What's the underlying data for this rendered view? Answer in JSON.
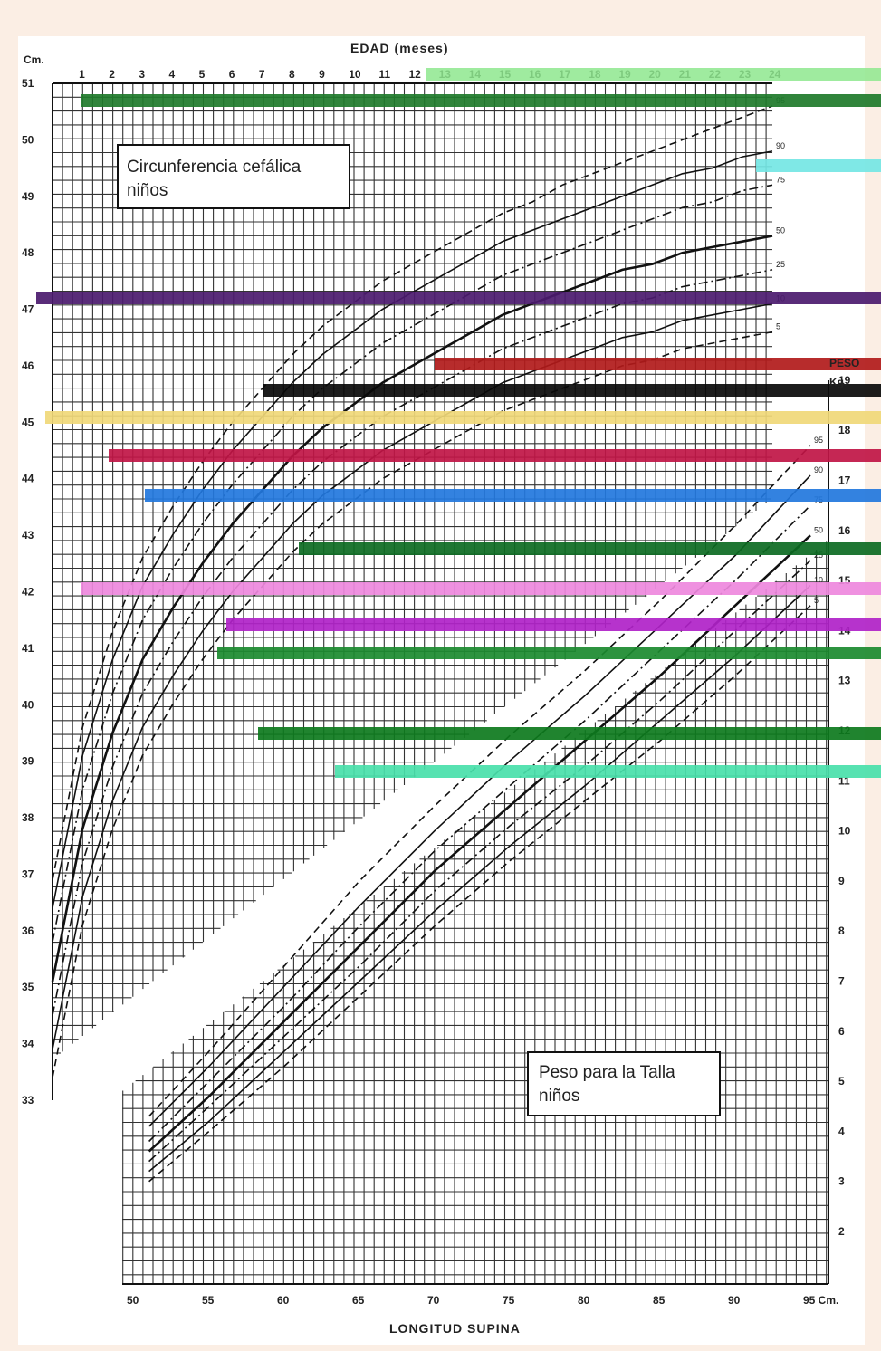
{
  "chart_data": [
    {
      "type": "line",
      "title": "Circunferencia cefálica niños",
      "xlabel": "EDAD (meses)",
      "ylabel": "Cm.",
      "x_ticks": [
        "1",
        "2",
        "3",
        "4",
        "5",
        "6",
        "7",
        "8",
        "9",
        "10",
        "11",
        "12",
        "13",
        "14",
        "15",
        "16",
        "17",
        "18",
        "19",
        "20",
        "21",
        "22",
        "23",
        "24"
      ],
      "y_ticks": [
        "51",
        "50",
        "49",
        "48",
        "47",
        "46",
        "45",
        "44",
        "43",
        "42",
        "41",
        "40",
        "39",
        "38",
        "37",
        "36",
        "35",
        "34",
        "33"
      ],
      "xlim": [
        0,
        24
      ],
      "ylim": [
        33,
        51
      ],
      "grid": true,
      "x": [
        0,
        1,
        2,
        3,
        4,
        5,
        6,
        7,
        8,
        9,
        10,
        11,
        12,
        13,
        14,
        15,
        16,
        17,
        18,
        19,
        20,
        21,
        22,
        23,
        24
      ],
      "series": [
        {
          "name": "95",
          "dash": "8,5",
          "values": [
            36.9,
            39.6,
            41.3,
            42.6,
            43.5,
            44.3,
            45.0,
            45.6,
            46.2,
            46.7,
            47.1,
            47.5,
            47.8,
            48.1,
            48.4,
            48.7,
            48.9,
            49.2,
            49.4,
            49.6,
            49.8,
            50.0,
            50.2,
            50.4,
            50.6
          ]
        },
        {
          "name": "90",
          "dash": "",
          "values": [
            36.4,
            39.1,
            40.8,
            42.1,
            43.0,
            43.8,
            44.5,
            45.1,
            45.7,
            46.2,
            46.6,
            47.0,
            47.3,
            47.6,
            47.9,
            48.2,
            48.4,
            48.6,
            48.8,
            49.0,
            49.2,
            49.4,
            49.5,
            49.7,
            49.8
          ]
        },
        {
          "name": "75",
          "dash": "10,4,2,4",
          "values": [
            35.8,
            38.5,
            40.2,
            41.5,
            42.4,
            43.2,
            43.9,
            44.5,
            45.1,
            45.6,
            46.0,
            46.4,
            46.7,
            47.0,
            47.3,
            47.6,
            47.8,
            48.0,
            48.2,
            48.4,
            48.6,
            48.8,
            48.9,
            49.1,
            49.2
          ]
        },
        {
          "name": "50",
          "dash": "",
          "values": [
            35.1,
            37.8,
            39.5,
            40.8,
            41.7,
            42.5,
            43.2,
            43.8,
            44.4,
            44.9,
            45.3,
            45.7,
            46.0,
            46.3,
            46.6,
            46.9,
            47.1,
            47.3,
            47.5,
            47.7,
            47.8,
            48.0,
            48.1,
            48.2,
            48.3
          ]
        },
        {
          "name": "25",
          "dash": "10,4,2,4",
          "values": [
            34.5,
            37.2,
            38.9,
            40.2,
            41.1,
            41.9,
            42.6,
            43.2,
            43.8,
            44.3,
            44.7,
            45.1,
            45.4,
            45.7,
            46.0,
            46.3,
            46.5,
            46.7,
            46.9,
            47.1,
            47.2,
            47.4,
            47.5,
            47.6,
            47.7
          ]
        },
        {
          "name": "10",
          "dash": "",
          "values": [
            33.9,
            36.6,
            38.3,
            39.6,
            40.5,
            41.3,
            42.0,
            42.6,
            43.2,
            43.7,
            44.1,
            44.5,
            44.8,
            45.1,
            45.4,
            45.7,
            45.9,
            46.1,
            46.3,
            46.5,
            46.6,
            46.8,
            46.9,
            47.0,
            47.1
          ]
        },
        {
          "name": "5",
          "dash": "8,5",
          "values": [
            33.4,
            36.1,
            37.8,
            39.1,
            40.0,
            40.8,
            41.5,
            42.1,
            42.7,
            43.2,
            43.6,
            44.0,
            44.3,
            44.6,
            44.9,
            45.2,
            45.4,
            45.6,
            45.8,
            46.0,
            46.1,
            46.3,
            46.4,
            46.5,
            46.6
          ]
        }
      ]
    },
    {
      "type": "line",
      "title": "Peso para la Talla niños",
      "xlabel": "LONGITUD SUPINA",
      "ylabel": "PESO Kg.",
      "x_ticks": [
        "50",
        "55",
        "60",
        "65",
        "70",
        "75",
        "80",
        "85",
        "90",
        "95 Cm."
      ],
      "y_ticks": [
        "19",
        "18",
        "17",
        "16",
        "15",
        "14",
        "13",
        "12",
        "11",
        "10",
        "9",
        "8",
        "7",
        "6",
        "5",
        "4",
        "3",
        "2"
      ],
      "xlim": [
        49,
        97
      ],
      "ylim": [
        1.5,
        19.5
      ],
      "grid": true,
      "x": [
        51,
        55,
        60,
        65,
        70,
        75,
        80,
        85,
        90,
        95
      ],
      "series": [
        {
          "name": "95",
          "dash": "8,5",
          "values": [
            4.3,
            5.6,
            7.3,
            9.0,
            10.5,
            11.9,
            13.2,
            14.6,
            16.1,
            17.7
          ]
        },
        {
          "name": "90",
          "dash": "",
          "values": [
            4.1,
            5.3,
            6.9,
            8.5,
            10.0,
            11.4,
            12.7,
            14.1,
            15.5,
            17.1
          ]
        },
        {
          "name": "75",
          "dash": "10,4,2,4",
          "values": [
            3.8,
            5.0,
            6.5,
            8.1,
            9.6,
            10.9,
            12.2,
            13.6,
            15.0,
            16.5
          ]
        },
        {
          "name": "50",
          "dash": "",
          "values": [
            3.6,
            4.7,
            6.2,
            7.7,
            9.2,
            10.5,
            11.8,
            13.1,
            14.5,
            15.9
          ]
        },
        {
          "name": "25",
          "dash": "10,4,2,4",
          "values": [
            3.4,
            4.5,
            5.9,
            7.3,
            8.8,
            10.1,
            11.3,
            12.6,
            14.0,
            15.4
          ]
        },
        {
          "name": "10",
          "dash": "",
          "values": [
            3.2,
            4.2,
            5.6,
            7.0,
            8.4,
            9.7,
            10.9,
            12.2,
            13.5,
            14.9
          ]
        },
        {
          "name": "5",
          "dash": "8,5",
          "values": [
            3.0,
            4.0,
            5.3,
            6.7,
            8.1,
            9.4,
            10.6,
            11.8,
            13.1,
            14.5
          ]
        }
      ]
    }
  ],
  "corrupted_stripes": [
    {
      "y": 111,
      "x1": 90,
      "x2": 973,
      "color": "#1e7a2a"
    },
    {
      "y": 183,
      "x1": 835,
      "x2": 973,
      "color": "#74e6e4"
    },
    {
      "y": 329,
      "x1": 40,
      "x2": 973,
      "color": "#4b1a6e"
    },
    {
      "y": 402,
      "x1": 480,
      "x2": 973,
      "color": "#b11a1a"
    },
    {
      "y": 431,
      "x1": 290,
      "x2": 973,
      "color": "#0a0a0a"
    },
    {
      "y": 461,
      "x1": 50,
      "x2": 973,
      "color": "#f0d878"
    },
    {
      "y": 503,
      "x1": 120,
      "x2": 973,
      "color": "#c01545"
    },
    {
      "y": 547,
      "x1": 160,
      "x2": 973,
      "color": "#2277dd"
    },
    {
      "y": 606,
      "x1": 330,
      "x2": 973,
      "color": "#0c6a22"
    },
    {
      "y": 650,
      "x1": 90,
      "x2": 973,
      "color": "#ee88dd"
    },
    {
      "y": 690,
      "x1": 250,
      "x2": 973,
      "color": "#b022c8"
    },
    {
      "y": 721,
      "x1": 240,
      "x2": 973,
      "color": "#1b8a2f"
    },
    {
      "y": 810,
      "x1": 285,
      "x2": 973,
      "color": "#0d7a1d"
    },
    {
      "y": 852,
      "x1": 370,
      "x2": 973,
      "color": "#49dfaa"
    }
  ]
}
